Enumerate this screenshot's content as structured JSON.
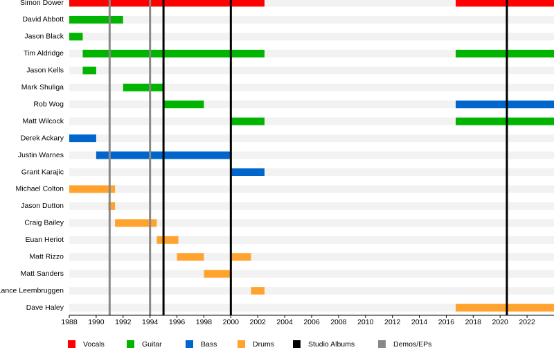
{
  "chart_data": {
    "type": "timeline",
    "xlim": [
      1988,
      2024
    ],
    "xticks": [
      1988,
      1990,
      1992,
      1994,
      1996,
      1998,
      2000,
      2002,
      2004,
      2006,
      2008,
      2010,
      2012,
      2014,
      2016,
      2018,
      2020,
      2022
    ],
    "roles": [
      {
        "name": "Vocals",
        "color": "#ff0000"
      },
      {
        "name": "Guitar",
        "color": "#00b400"
      },
      {
        "name": "Bass",
        "color": "#0066cc"
      },
      {
        "name": "Drums",
        "color": "#ffa32e"
      }
    ],
    "lines": [
      {
        "name": "Studio Albums",
        "color": "#000000",
        "values": [
          1995,
          2000,
          2020.5
        ]
      },
      {
        "name": "Demos/EPs",
        "color": "#888888",
        "values": [
          1991,
          1994
        ]
      }
    ],
    "members": [
      {
        "name": "Simon Dower",
        "periods": [
          {
            "role": "Vocals",
            "start": 1988,
            "end": 2002.5
          },
          {
            "role": "Vocals",
            "start": 2016.7,
            "end": 2024
          }
        ]
      },
      {
        "name": "David Abbott",
        "periods": [
          {
            "role": "Guitar",
            "start": 1988,
            "end": 1992
          }
        ]
      },
      {
        "name": "Jason Black",
        "periods": [
          {
            "role": "Guitar",
            "start": 1988,
            "end": 1989
          }
        ]
      },
      {
        "name": "Tim Aldridge",
        "periods": [
          {
            "role": "Guitar",
            "start": 1989,
            "end": 2002.5
          },
          {
            "role": "Guitar",
            "start": 2016.7,
            "end": 2024
          }
        ]
      },
      {
        "name": "Jason Kells",
        "periods": [
          {
            "role": "Guitar",
            "start": 1989,
            "end": 1990
          }
        ]
      },
      {
        "name": "Mark Shuliga",
        "periods": [
          {
            "role": "Guitar",
            "start": 1992,
            "end": 1995
          }
        ]
      },
      {
        "name": "Rob Wog",
        "periods": [
          {
            "role": "Guitar",
            "start": 1995,
            "end": 1998
          },
          {
            "role": "Bass",
            "start": 2016.7,
            "end": 2024
          }
        ]
      },
      {
        "name": "Matt Wilcock",
        "periods": [
          {
            "role": "Guitar",
            "start": 2000,
            "end": 2002.5
          },
          {
            "role": "Guitar",
            "start": 2016.7,
            "end": 2024
          }
        ]
      },
      {
        "name": "Derek Ackary",
        "periods": [
          {
            "role": "Bass",
            "start": 1988,
            "end": 1990
          }
        ]
      },
      {
        "name": "Justin Warnes",
        "periods": [
          {
            "role": "Bass",
            "start": 1990,
            "end": 2000
          }
        ]
      },
      {
        "name": "Grant Karajic",
        "periods": [
          {
            "role": "Bass",
            "start": 2000,
            "end": 2002.5
          }
        ]
      },
      {
        "name": "Michael Colton",
        "periods": [
          {
            "role": "Drums",
            "start": 1988,
            "end": 1991.4
          }
        ]
      },
      {
        "name": "Jason Dutton",
        "periods": [
          {
            "role": "Drums",
            "start": 1990.9,
            "end": 1991.4
          }
        ]
      },
      {
        "name": "Craig Bailey",
        "periods": [
          {
            "role": "Drums",
            "start": 1991.4,
            "end": 1994.5
          }
        ]
      },
      {
        "name": "Euan Heriot",
        "periods": [
          {
            "role": "Drums",
            "start": 1994.5,
            "end": 1996.1
          }
        ]
      },
      {
        "name": "Matt Rizzo",
        "periods": [
          {
            "role": "Drums",
            "start": 1996,
            "end": 1998
          },
          {
            "role": "Drums",
            "start": 2000,
            "end": 2001.5
          }
        ]
      },
      {
        "name": "Matt Sanders",
        "periods": [
          {
            "role": "Drums",
            "start": 1998,
            "end": 2000
          }
        ]
      },
      {
        "name": "Lance Leembruggen",
        "periods": [
          {
            "role": "Drums",
            "start": 2001.5,
            "end": 2002.5
          }
        ]
      },
      {
        "name": "Dave Haley",
        "periods": [
          {
            "role": "Drums",
            "start": 2016.7,
            "end": 2024
          }
        ]
      }
    ]
  }
}
